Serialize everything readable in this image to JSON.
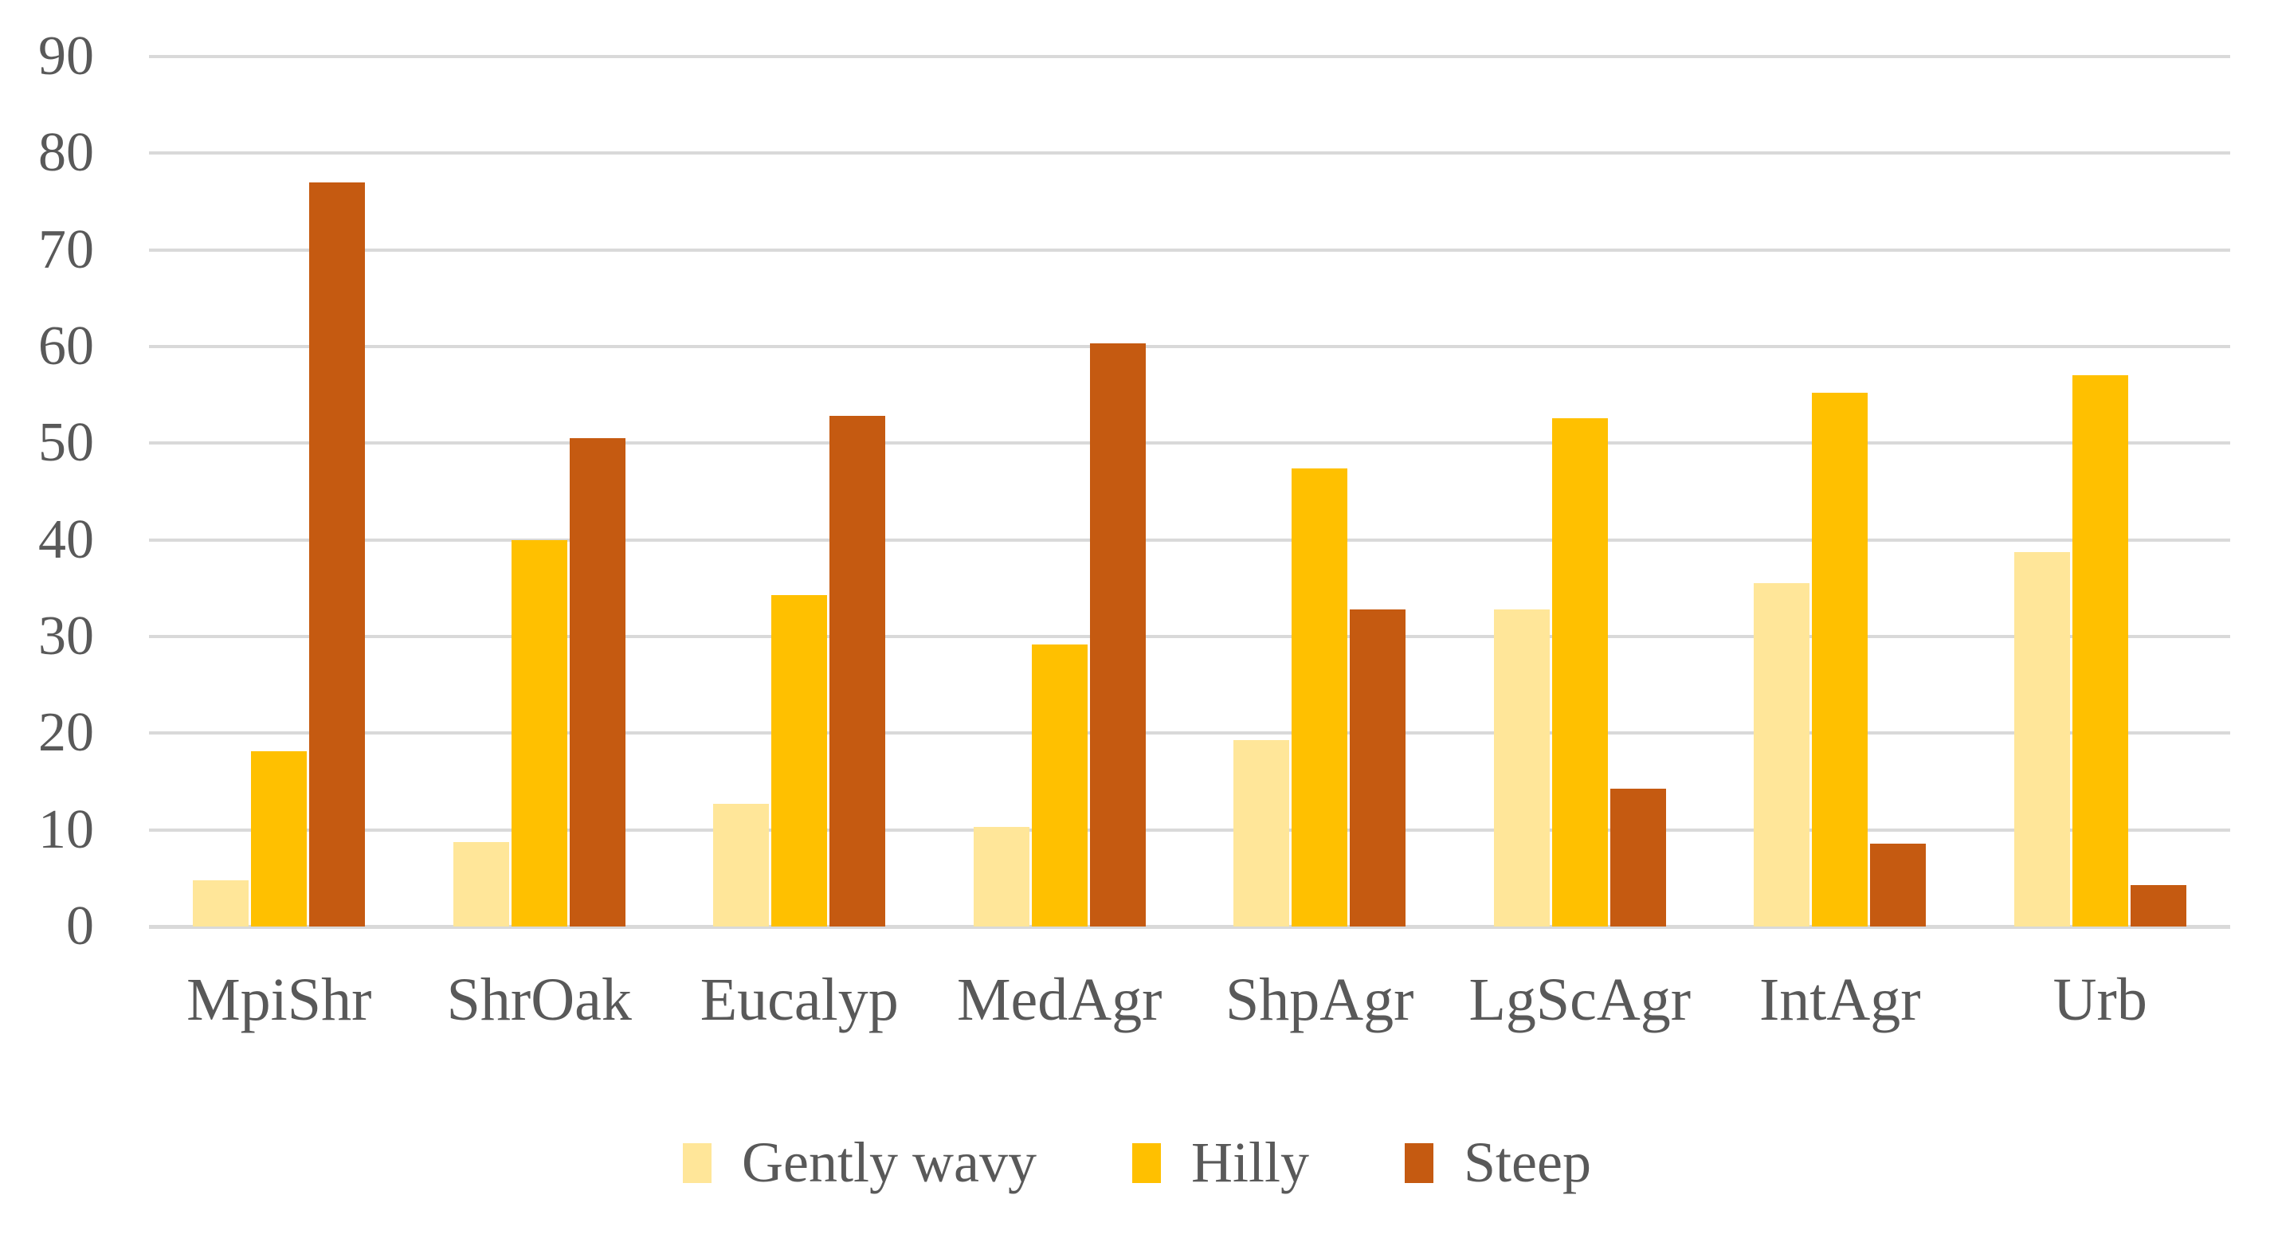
{
  "chart_data": {
    "type": "bar",
    "title": "",
    "xlabel": "",
    "ylabel": "",
    "categories": [
      "MpiShr",
      "ShrOak",
      "Eucalyp",
      "MedAgr",
      "ShpAgr",
      "LgScAgr",
      "IntAgr",
      "Urb"
    ],
    "series": [
      {
        "name": "Gently wavy",
        "color": "#FFE699",
        "values": [
          4.8,
          8.7,
          12.7,
          10.3,
          19.3,
          32.8,
          35.5,
          38.7
        ]
      },
      {
        "name": "Hilly",
        "color": "#FFC000",
        "values": [
          18.1,
          40.0,
          34.3,
          29.2,
          47.4,
          52.6,
          55.2,
          57.0
        ]
      },
      {
        "name": "Steep",
        "color": "#C55A11",
        "values": [
          77.0,
          50.5,
          52.8,
          60.3,
          32.8,
          14.3,
          8.6,
          4.3
        ]
      }
    ],
    "ylim": [
      0,
      90
    ],
    "ytick_step": 10,
    "yticks": [
      "0",
      "10",
      "20",
      "30",
      "40",
      "50",
      "60",
      "70",
      "80",
      "90"
    ],
    "grid": true,
    "legend_position": "bottom"
  },
  "styles": {
    "text_color": "#595959",
    "gridline_color": "#D9D9D9",
    "background": "#FFFFFF"
  }
}
